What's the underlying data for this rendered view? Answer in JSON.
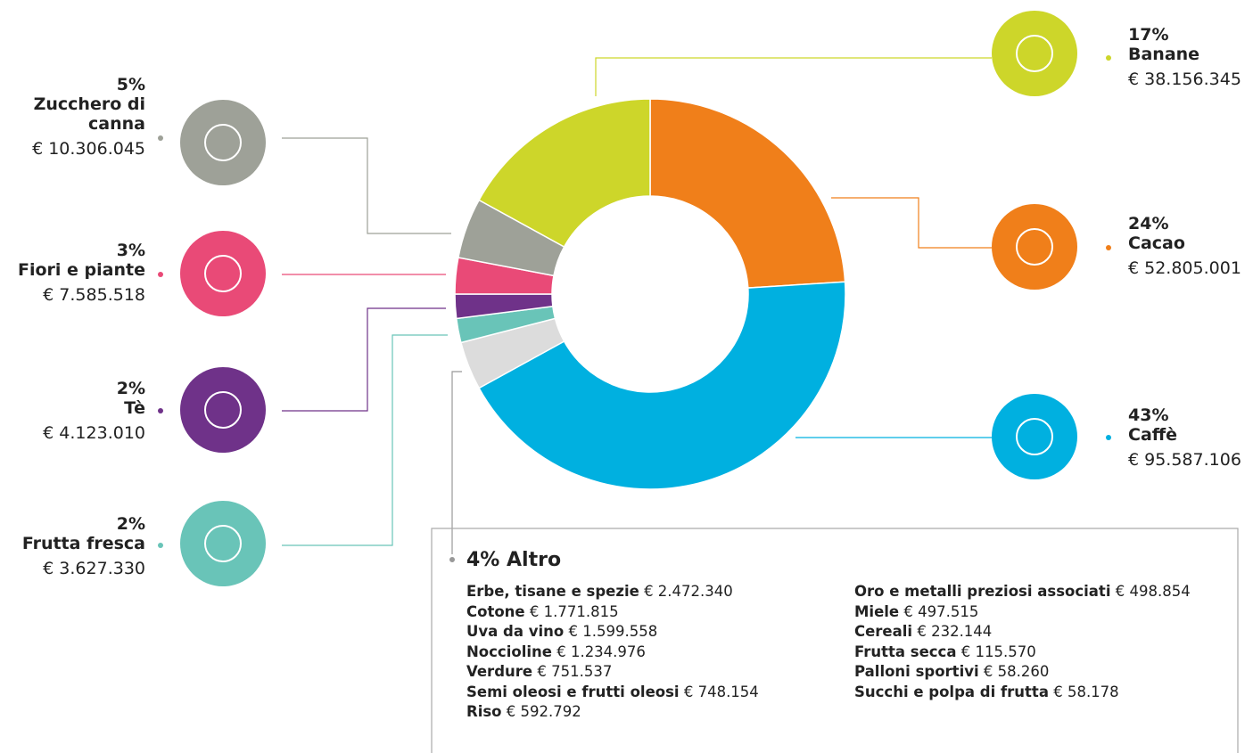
{
  "chart_data": {
    "type": "pie",
    "categories": [
      "Cacao",
      "Caffè",
      "Altro",
      "Frutta fresca",
      "Tè",
      "Fiori e piante",
      "Zucchero di canna",
      "Banane"
    ],
    "values": [
      24,
      43,
      4,
      2,
      2,
      3,
      5,
      17
    ],
    "value_labels": [
      "24%",
      "43%",
      "4%",
      "2%",
      "2%",
      "3%",
      "5%",
      "17%"
    ],
    "amounts": [
      "€ 52.805.001",
      "€ 95.587.106",
      null,
      "€ 3.627.330",
      "€ 4.123.010",
      "€ 7.585.518",
      "€ 10.306.045",
      "€ 38.156.345"
    ],
    "colors": [
      "#f07f1a",
      "#00b0e0",
      "#dcdcdc",
      "#69c4b8",
      "#6f3289",
      "#e94a77",
      "#9ea198",
      "#cdd62a"
    ],
    "altro_items": [
      {
        "name": "Erbe, tisane e spezie",
        "amount": "€ 2.472.340"
      },
      {
        "name": "Cotone",
        "amount": "€ 1.771.815"
      },
      {
        "name": "Uva da vino",
        "amount": "€ 1.599.558"
      },
      {
        "name": "Noccioline",
        "amount": "€ 1.234.976"
      },
      {
        "name": "Verdure",
        "amount": "€ 751.537"
      },
      {
        "name": "Semi oleosi e frutti oleosi",
        "amount": "€ 748.154"
      },
      {
        "name": "Riso",
        "amount": "€ 592.792"
      },
      {
        "name": "Oro e metalli preziosi associati",
        "amount": "€ 498.854"
      },
      {
        "name": "Miele",
        "amount": "€ 497.515"
      },
      {
        "name": "Cereali",
        "amount": "€ 232.144"
      },
      {
        "name": "Frutta secca",
        "amount": "€ 115.570"
      },
      {
        "name": "Palloni sportivi",
        "amount": "€ 58.260"
      },
      {
        "name": "Succhi e polpa di frutta",
        "amount": "€ 58.178"
      }
    ]
  }
}
